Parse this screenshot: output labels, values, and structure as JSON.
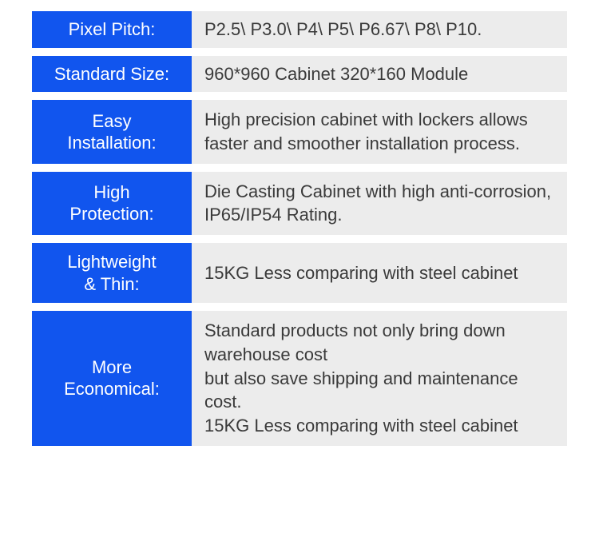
{
  "colors": {
    "label_bg": "#1155ee",
    "label_fg": "#ffffff",
    "value_bg": "#ececec",
    "value_fg": "#3a3a3a"
  },
  "rows": [
    {
      "label": "Pixel Pitch:",
      "value": "P2.5\\ P3.0\\ P4\\ P5\\ P6.67\\ P8\\ P10.",
      "compact": true
    },
    {
      "label": "Standard Size:",
      "value": "960*960 Cabinet    320*160 Module",
      "compact": true
    },
    {
      "label": "Easy\nInstallation:",
      "value": "High precision cabinet with lockers allows faster and smoother installation process."
    },
    {
      "label": "High\nProtection:",
      "value": "Die Casting Cabinet with high anti-corrosion, IP65/IP54 Rating."
    },
    {
      "label": "Lightweight\n& Thin:",
      "value": "15KG Less comparing with steel cabinet"
    },
    {
      "label": "More\nEconomical:",
      "value": "Standard products not only bring down warehouse cost\nbut also save shipping and maintenance cost.\n15KG Less comparing with steel cabinet"
    }
  ]
}
